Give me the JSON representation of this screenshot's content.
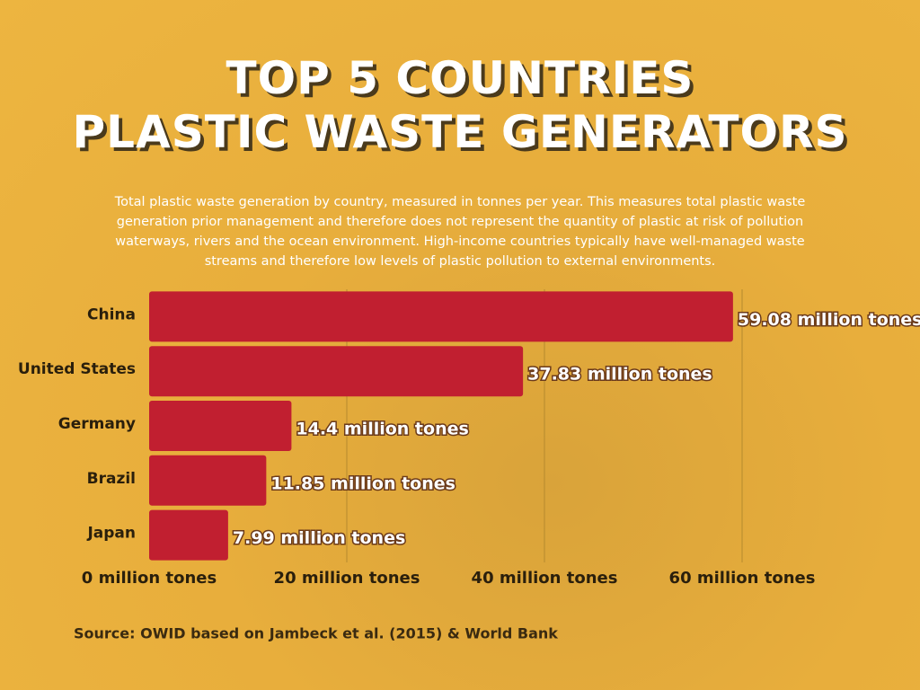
{
  "chart_data": {
    "type": "bar",
    "orientation": "horizontal",
    "title": [
      "TOP 5 COUNTRIES",
      "PLASTIC WASTE GENERATORS"
    ],
    "subtitle": "Total plastic waste generation by country, measured in tonnes per year. This measures total plastic waste generation prior management and therefore does not represent the quantity of plastic at risk of pollution waterways, rivers and the ocean environment. High-income countries typically have well-managed waste streams and therefore low levels of plastic pollution to external environments.",
    "categories": [
      "China",
      "United States",
      "Germany",
      "Brazil",
      "Japan"
    ],
    "values": [
      59.08,
      37.83,
      14.4,
      11.85,
      7.99
    ],
    "value_labels": [
      "59.08 million tones",
      "37.83 million tones",
      "14.4 million tones",
      "11.85 million tones",
      "7.99 million tones"
    ],
    "color": "#c11f30",
    "xlim": [
      0,
      60
    ],
    "xticks": [
      {
        "value": 0,
        "label": "0 million tones"
      },
      {
        "value": 20,
        "label": "20 million tones"
      },
      {
        "value": 40,
        "label": "40 million tones"
      },
      {
        "value": 60,
        "label": "60 million tones"
      }
    ],
    "grid": true,
    "source": "Source: OWID based on Jambeck et al. (2015) & World Bank"
  }
}
